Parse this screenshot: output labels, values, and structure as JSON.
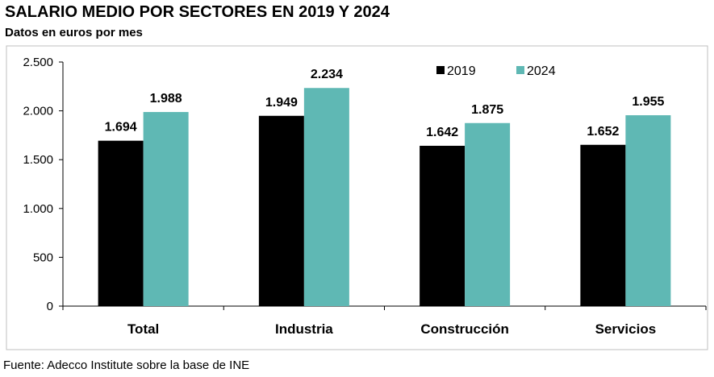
{
  "title": "SALARIO MEDIO POR SECTORES EN 2019 Y 2024",
  "subtitle": "Datos en euros por mes",
  "source": "Fuente: Adecco Institute sobre la base de INE",
  "chart_data": {
    "type": "bar",
    "categories": [
      "Total",
      "Industria",
      "Construcción",
      "Servicios"
    ],
    "series": [
      {
        "name": "2019",
        "values": [
          1694,
          1949,
          1642,
          1652
        ],
        "value_labels": [
          "1.694",
          "1.949",
          "1.642",
          "1.652"
        ],
        "color": "#000000"
      },
      {
        "name": "2024",
        "values": [
          1988,
          2234,
          1875,
          1955
        ],
        "value_labels": [
          "1.988",
          "2.234",
          "1.875",
          "1.955"
        ],
        "color": "#5fb8b4"
      }
    ],
    "yticks": [
      0,
      500,
      1000,
      1500,
      2000,
      2500
    ],
    "ytick_labels": [
      "0",
      "500",
      "1.000",
      "1.500",
      "2.000",
      "2.500"
    ],
    "ylim": [
      0,
      2500
    ],
    "grid": false,
    "legend": "top-right"
  }
}
